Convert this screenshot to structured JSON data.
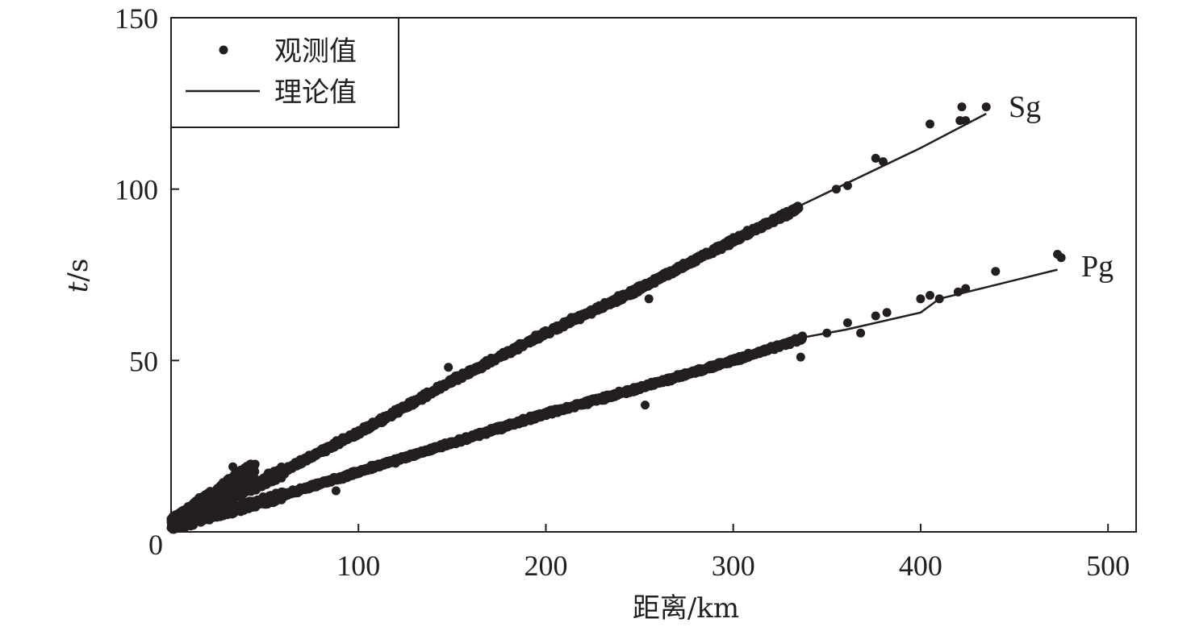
{
  "chart_data": {
    "type": "scatter",
    "title": "",
    "xlabel": "距离/km",
    "ylabel_italic": "t",
    "ylabel_unit": "/s",
    "xlim": [
      0,
      515
    ],
    "ylim": [
      0,
      150
    ],
    "xticks": [
      100,
      200,
      300,
      400,
      500
    ],
    "yticks": [
      0,
      50,
      100,
      150
    ],
    "grid": false,
    "legend_position": "top-left",
    "legend": {
      "observed": "观测值",
      "theoretical": "理论值"
    },
    "colors": {
      "marks": "#231f20",
      "axis": "#231f20"
    },
    "series": [
      {
        "name": "Sg",
        "observed_trend": [
          [
            0,
            3
          ],
          [
            50,
            15
          ],
          [
            100,
            29
          ],
          [
            150,
            44
          ],
          [
            200,
            58
          ],
          [
            250,
            71
          ],
          [
            300,
            85
          ],
          [
            335,
            94.5
          ]
        ],
        "observed_sparse": [
          [
            15,
            10
          ],
          [
            33,
            19
          ],
          [
            148,
            48
          ],
          [
            255,
            68
          ],
          [
            355,
            100
          ],
          [
            361,
            101
          ],
          [
            376,
            109
          ],
          [
            380,
            108
          ],
          [
            405,
            119
          ],
          [
            421,
            120
          ],
          [
            422,
            124
          ],
          [
            424,
            120
          ],
          [
            435,
            124
          ]
        ],
        "theoretical": [
          [
            0,
            2
          ],
          [
            100,
            29
          ],
          [
            200,
            57.5
          ],
          [
            300,
            86
          ],
          [
            335,
            95
          ],
          [
            400,
            112
          ],
          [
            435,
            122
          ]
        ]
      },
      {
        "name": "Pg",
        "observed_trend": [
          [
            0,
            1.5
          ],
          [
            50,
            9
          ],
          [
            100,
            17.5
          ],
          [
            150,
            26
          ],
          [
            200,
            34.5
          ],
          [
            250,
            42
          ],
          [
            300,
            50
          ],
          [
            337,
            56.5
          ]
        ],
        "observed_sparse": [
          [
            88,
            12
          ],
          [
            253,
            37
          ],
          [
            336,
            51
          ],
          [
            350,
            58
          ],
          [
            361,
            61
          ],
          [
            368,
            58
          ],
          [
            376,
            63
          ],
          [
            382,
            64
          ],
          [
            400,
            68
          ],
          [
            405,
            69
          ],
          [
            410,
            68
          ],
          [
            420,
            70
          ],
          [
            424,
            71
          ],
          [
            440,
            76
          ],
          [
            473,
            81
          ],
          [
            475,
            80
          ]
        ],
        "theoretical": [
          [
            0,
            1
          ],
          [
            100,
            17.5
          ],
          [
            200,
            34
          ],
          [
            300,
            50.5
          ],
          [
            335,
            56.5
          ],
          [
            360,
            59
          ],
          [
            400,
            64
          ],
          [
            410,
            68
          ],
          [
            473,
            76.5
          ]
        ]
      }
    ]
  }
}
